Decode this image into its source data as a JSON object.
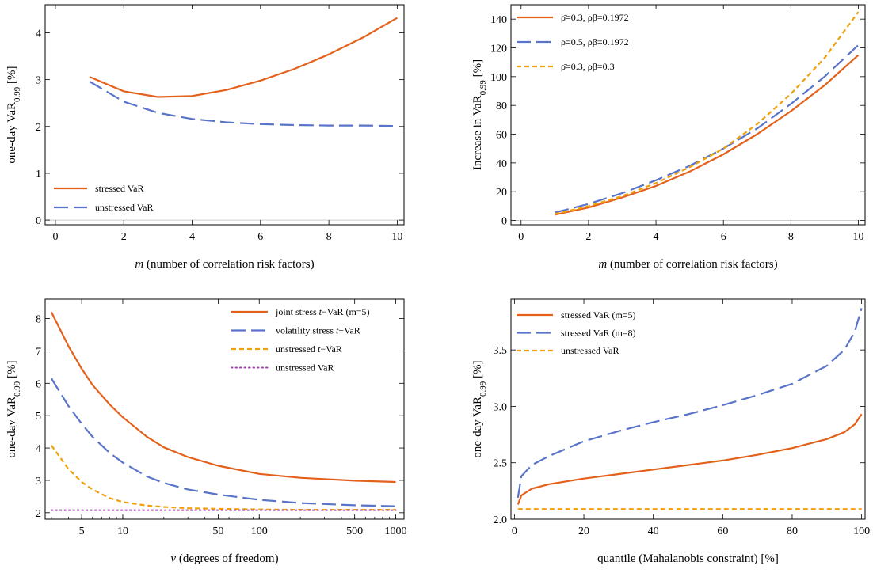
{
  "colors": {
    "orange": "#e4611b",
    "blue": "#5a74c9",
    "gold": "#f0a10c",
    "purple": "#a53db3"
  },
  "chart_data": [
    {
      "type": "line",
      "xlabel": "m (number of correlation risk factors)",
      "ylabel": "one-day VaR0.99 [%]",
      "xlim": [
        -0.3,
        10.2
      ],
      "ylim": [
        -0.1,
        4.6
      ],
      "xticks": [
        0,
        2,
        4,
        6,
        8,
        10
      ],
      "yticks": [
        0,
        1,
        2,
        3,
        4
      ],
      "legend_position": "bottom-left",
      "series": [
        {
          "name": "stressed VaR",
          "color": "orange",
          "dash": "solid",
          "x": [
            1,
            2,
            3,
            4,
            5,
            6,
            7,
            8,
            9,
            10
          ],
          "values": [
            3.06,
            2.75,
            2.63,
            2.65,
            2.78,
            2.98,
            3.23,
            3.54,
            3.9,
            4.32
          ]
        },
        {
          "name": "unstressed VaR",
          "color": "blue",
          "dash": "longdash",
          "x": [
            1,
            2,
            3,
            4,
            5,
            6,
            7,
            8,
            9,
            10
          ],
          "values": [
            2.96,
            2.53,
            2.29,
            2.16,
            2.09,
            2.05,
            2.03,
            2.02,
            2.02,
            2.01
          ]
        }
      ]
    },
    {
      "type": "line",
      "xlabel": "m (number of correlation risk factors)",
      "ylabel": "Increase in VaR0.99 [%]",
      "xlim": [
        -0.3,
        10.2
      ],
      "ylim": [
        -3,
        150
      ],
      "xticks": [
        0,
        2,
        4,
        6,
        8,
        10
      ],
      "yticks": [
        0,
        20,
        40,
        60,
        80,
        100,
        120,
        140
      ],
      "legend_position": "top-left",
      "series": [
        {
          "name": "ρ̄=0.3, ρβ=0.1972",
          "color": "orange",
          "dash": "solid",
          "x": [
            1,
            2,
            3,
            4,
            5,
            6,
            7,
            8,
            9,
            10
          ],
          "values": [
            4,
            9,
            16,
            24,
            34,
            46,
            60,
            76,
            94,
            115
          ]
        },
        {
          "name": "ρ̄=0.5, ρβ=0.1972",
          "color": "blue",
          "dash": "longdash",
          "x": [
            1,
            2,
            3,
            4,
            5,
            6,
            7,
            8,
            9,
            10
          ],
          "values": [
            5.5,
            11.5,
            19,
            28,
            38,
            50,
            64,
            81,
            100,
            122
          ]
        },
        {
          "name": "ρ̄=0.3, ρβ=0.3",
          "color": "gold",
          "dash": "shortdash",
          "x": [
            1,
            2,
            3,
            4,
            5,
            6,
            7,
            8,
            9,
            10
          ],
          "values": [
            4.5,
            10,
            17,
            26,
            37,
            50,
            67,
            88,
            113,
            145
          ]
        }
      ]
    },
    {
      "type": "line",
      "xscale": "log",
      "xlabel": "ν (degrees of freedom)",
      "ylabel": "one-day VaR0.99 [%]",
      "xlim": [
        2.7,
        1150
      ],
      "ylim": [
        1.8,
        8.6
      ],
      "xticks": [
        5,
        10,
        50,
        100,
        500,
        1000
      ],
      "yticks": [
        2,
        3,
        4,
        5,
        6,
        7,
        8
      ],
      "legend_position": "top-right",
      "series": [
        {
          "name": "joint stress t−VaR (m=5)",
          "color": "orange",
          "dash": "solid",
          "x": [
            3,
            4,
            5,
            6,
            8,
            10,
            15,
            20,
            30,
            50,
            100,
            200,
            500,
            1000
          ],
          "values": [
            8.2,
            7.15,
            6.45,
            5.95,
            5.35,
            4.95,
            4.35,
            4.02,
            3.72,
            3.45,
            3.2,
            3.08,
            2.99,
            2.95
          ]
        },
        {
          "name": "volatility stress t−VaR",
          "color": "blue",
          "dash": "longdash",
          "x": [
            3,
            4,
            5,
            6,
            8,
            10,
            15,
            20,
            30,
            50,
            100,
            200,
            500,
            1000
          ],
          "values": [
            6.15,
            5.3,
            4.75,
            4.35,
            3.85,
            3.55,
            3.12,
            2.92,
            2.72,
            2.56,
            2.4,
            2.3,
            2.23,
            2.2
          ]
        },
        {
          "name": "unstressed t−VaR",
          "color": "gold",
          "dash": "shortdash",
          "x": [
            3,
            4,
            5,
            6,
            8,
            10,
            15,
            20,
            30,
            50,
            100,
            200,
            500,
            1000
          ],
          "values": [
            4.08,
            3.35,
            2.95,
            2.72,
            2.45,
            2.33,
            2.22,
            2.18,
            2.14,
            2.12,
            2.1,
            2.09,
            2.09,
            2.09
          ]
        },
        {
          "name": "unstressed VaR",
          "color": "purple",
          "dash": "dotted",
          "x": [
            3,
            1000
          ],
          "values": [
            2.08,
            2.08
          ]
        }
      ]
    },
    {
      "type": "line",
      "xlabel": "quantile (Mahalanobis constraint) [%]",
      "ylabel": "one-day VaR0.99 [%]",
      "xlim": [
        -1,
        101
      ],
      "ylim": [
        2.0,
        3.95
      ],
      "xticks": [
        0,
        20,
        40,
        60,
        80,
        100
      ],
      "yticks": [
        2.0,
        2.5,
        3.0,
        3.5
      ],
      "legend_position": "top-left",
      "series": [
        {
          "name": "stressed VaR (m=5)",
          "color": "orange",
          "dash": "solid",
          "x": [
            1,
            2,
            5,
            10,
            20,
            30,
            40,
            50,
            60,
            70,
            80,
            90,
            95,
            98,
            100
          ],
          "values": [
            2.13,
            2.21,
            2.27,
            2.31,
            2.36,
            2.4,
            2.44,
            2.48,
            2.52,
            2.57,
            2.63,
            2.71,
            2.77,
            2.84,
            2.93
          ]
        },
        {
          "name": "stressed VaR (m=8)",
          "color": "blue",
          "dash": "longdash",
          "x": [
            1,
            2,
            5,
            10,
            20,
            30,
            40,
            50,
            60,
            70,
            80,
            90,
            95,
            98,
            100
          ],
          "values": [
            2.19,
            2.38,
            2.48,
            2.56,
            2.69,
            2.78,
            2.86,
            2.93,
            3.01,
            3.1,
            3.2,
            3.36,
            3.5,
            3.66,
            3.87
          ]
        },
        {
          "name": "unstressed VaR",
          "color": "gold",
          "dash": "shortdash",
          "x": [
            1,
            100
          ],
          "values": [
            2.09,
            2.09
          ]
        }
      ]
    }
  ]
}
